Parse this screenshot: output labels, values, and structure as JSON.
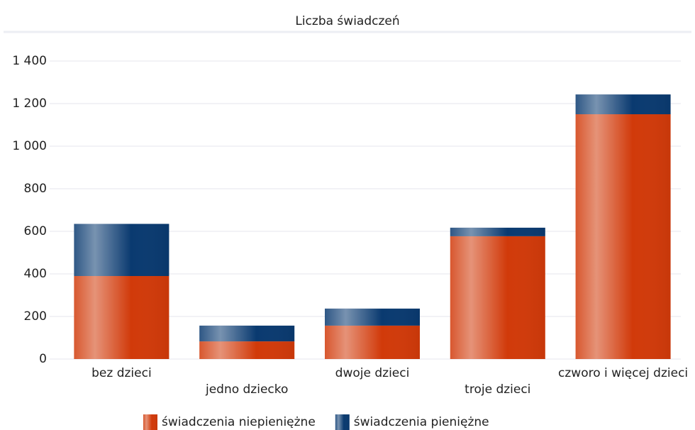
{
  "chart_data": {
    "type": "stacked_bar",
    "title": "Liczba świadczeń",
    "categories": [
      "bez dzieci",
      "jedno dziecko",
      "dwoje dzieci",
      "troje dzieci",
      "czworo i więcej dzieci"
    ],
    "series": [
      {
        "name": "świadczenia niepieniężne",
        "color": "#d13a0a",
        "values": [
          390,
          83,
          157,
          577,
          1150
        ]
      },
      {
        "name": "świadczenia pieniężne",
        "color": "#0a3a70",
        "values": [
          245,
          74,
          80,
          40,
          93
        ]
      }
    ],
    "ylim": [
      0,
      1400
    ],
    "yticks": [
      0,
      200,
      400,
      600,
      800,
      {
        "value": 1000,
        "label": "1 000"
      },
      {
        "value": 1200,
        "label": "1 200"
      },
      {
        "value": 1400,
        "label": "1 400"
      }
    ],
    "grid": true,
    "legend": "bottom"
  }
}
